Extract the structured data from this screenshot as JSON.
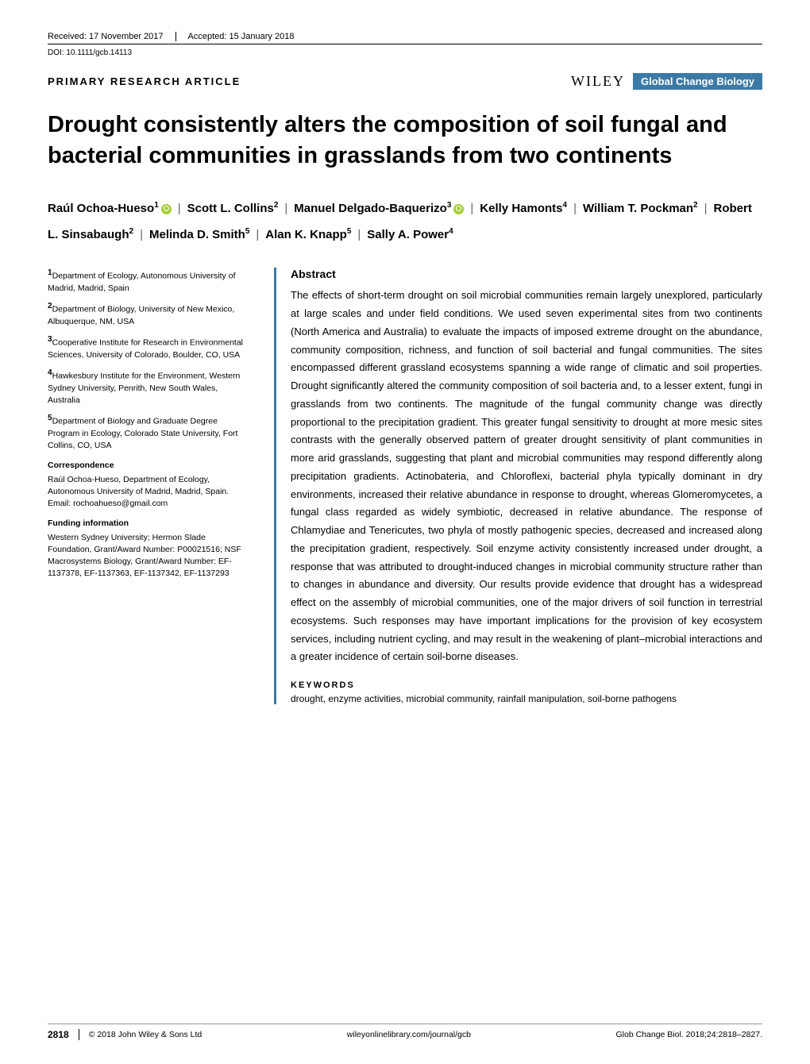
{
  "header": {
    "received": "Received: 17 November 2017",
    "accepted": "Accepted: 15 January 2018",
    "doi": "DOI: 10.1111/gcb.14113"
  },
  "article_type": "PRIMARY RESEARCH ARTICLE",
  "publisher": "WILEY",
  "journal_name": "Global Change Biology",
  "title": "Drought consistently alters the composition of soil fungal and bacterial communities in grasslands from two continents",
  "authors": [
    {
      "name": "Raúl Ochoa-Hueso",
      "aff": "1",
      "orcid": true
    },
    {
      "name": "Scott L. Collins",
      "aff": "2",
      "orcid": false
    },
    {
      "name": "Manuel Delgado-Baquerizo",
      "aff": "3",
      "orcid": true
    },
    {
      "name": "Kelly Hamonts",
      "aff": "4",
      "orcid": false
    },
    {
      "name": "William T. Pockman",
      "aff": "2",
      "orcid": false
    },
    {
      "name": "Robert L. Sinsabaugh",
      "aff": "2",
      "orcid": false
    },
    {
      "name": "Melinda D. Smith",
      "aff": "5",
      "orcid": false
    },
    {
      "name": "Alan K. Knapp",
      "aff": "5",
      "orcid": false
    },
    {
      "name": "Sally A. Power",
      "aff": "4",
      "orcid": false
    }
  ],
  "affiliations": [
    {
      "num": "1",
      "text": "Department of Ecology, Autonomous University of Madrid, Madrid, Spain"
    },
    {
      "num": "2",
      "text": "Department of Biology, University of New Mexico, Albuquerque, NM, USA"
    },
    {
      "num": "3",
      "text": "Cooperative Institute for Research in Environmental Sciences, University of Colorado, Boulder, CO, USA"
    },
    {
      "num": "4",
      "text": "Hawkesbury Institute for the Environment, Western Sydney University, Penrith, New South Wales, Australia"
    },
    {
      "num": "5",
      "text": "Department of Biology and Graduate Degree Program in Ecology, Colorado State University, Fort Collins, CO, USA"
    }
  ],
  "correspondence": {
    "head": "Correspondence",
    "body": "Raúl Ochoa-Hueso, Department of Ecology, Autonomous University of Madrid, Madrid, Spain.",
    "email": "Email: rochoahueso@gmail.com"
  },
  "funding": {
    "head": "Funding information",
    "body": "Western Sydney University; Hermon Slade Foundation, Grant/Award Number: P00021516; NSF Macrosystems Biology, Grant/Award Number: EF-1137378, EF-1137363, EF-1137342, EF-1137293"
  },
  "abstract": {
    "head": "Abstract",
    "body": "The effects of short-term drought on soil microbial communities remain largely unexplored, particularly at large scales and under field conditions. We used seven experimental sites from two continents (North America and Australia) to evaluate the impacts of imposed extreme drought on the abundance, community composition, richness, and function of soil bacterial and fungal communities. The sites encompassed different grassland ecosystems spanning a wide range of climatic and soil properties. Drought significantly altered the community composition of soil bacteria and, to a lesser extent, fungi in grasslands from two continents. The magnitude of the fungal community change was directly proportional to the precipitation gradient. This greater fungal sensitivity to drought at more mesic sites contrasts with the generally observed pattern of greater drought sensitivity of plant communities in more arid grasslands, suggesting that plant and microbial communities may respond differently along precipitation gradients. Actinobateria, and Chloroflexi, bacterial phyla typically dominant in dry environments, increased their relative abundance in response to drought, whereas Glomeromycetes, a fungal class regarded as widely symbiotic, decreased in relative abundance. The response of Chlamydiae and Tenericutes, two phyla of mostly pathogenic species, decreased and increased along the precipitation gradient, respectively. Soil enzyme activity consistently increased under drought, a response that was attributed to drought-induced changes in microbial community structure rather than to changes in abundance and diversity. Our results provide evidence that drought has a widespread effect on the assembly of microbial communities, one of the major drivers of soil function in terrestrial ecosystems. Such responses may have important implications for the provision of key ecosystem services, including nutrient cycling, and may result in the weakening of plant–microbial interactions and a greater incidence of certain soil-borne diseases."
  },
  "keywords": {
    "head": "KEYWORDS",
    "body": "drought, enzyme activities, microbial community, rainfall manipulation, soil-borne pathogens"
  },
  "footer": {
    "page_num": "2818",
    "copyright": "© 2018 John Wiley & Sons Ltd",
    "url": "wileyonlinelibrary.com/journal/gcb",
    "citation": "Glob Change Biol. 2018;24:2818–2827."
  },
  "style": {
    "accent_color": "#3b7aa6",
    "orcid_color": "#a6ce39",
    "background": "#ffffff",
    "text_color": "#000000",
    "title_fontsize": 29,
    "body_fontsize": 13,
    "small_fontsize": 10.5
  }
}
